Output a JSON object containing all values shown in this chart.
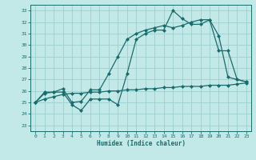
{
  "xlabel": "Humidex (Indice chaleur)",
  "bg_color": "#c2e8e8",
  "grid_color": "#9ecece",
  "line_color": "#1a6b6b",
  "xlim": [
    -0.5,
    23.5
  ],
  "ylim": [
    22.5,
    33.5
  ],
  "yticks": [
    23,
    24,
    25,
    26,
    27,
    28,
    29,
    30,
    31,
    32,
    33
  ],
  "xticks": [
    0,
    1,
    2,
    3,
    4,
    5,
    6,
    7,
    8,
    9,
    10,
    11,
    12,
    13,
    14,
    15,
    16,
    17,
    18,
    19,
    20,
    21,
    22,
    23
  ],
  "line1": [
    25.0,
    25.8,
    25.9,
    25.9,
    24.8,
    24.3,
    25.3,
    25.3,
    25.3,
    24.8,
    27.5,
    30.5,
    31.0,
    31.3,
    31.3,
    33.0,
    32.3,
    31.8,
    31.8,
    32.2,
    30.8,
    27.2,
    27.0,
    26.8
  ],
  "line2": [
    25.0,
    25.9,
    25.9,
    26.2,
    25.0,
    25.1,
    26.1,
    26.1,
    27.5,
    29.0,
    30.5,
    31.0,
    31.3,
    31.5,
    31.7,
    31.5,
    31.7,
    32.0,
    32.2,
    32.2,
    29.5,
    29.5,
    27.0,
    26.8
  ],
  "line3": [
    25.0,
    25.3,
    25.5,
    25.7,
    25.8,
    25.8,
    25.9,
    25.9,
    26.0,
    26.0,
    26.1,
    26.1,
    26.2,
    26.2,
    26.3,
    26.3,
    26.4,
    26.4,
    26.4,
    26.5,
    26.5,
    26.5,
    26.6,
    26.7
  ]
}
